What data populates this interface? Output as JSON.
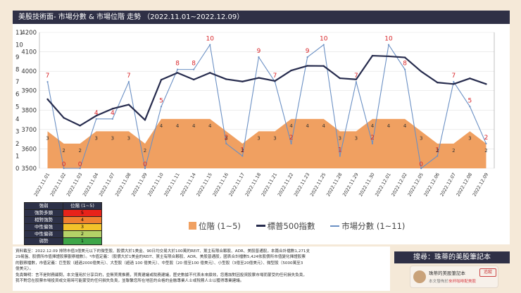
{
  "header": {
    "title": "美股技術面- 市場分數 & 市場位階 走勢 （2022.11.01~2022.12.09）"
  },
  "colors": {
    "position_area": "#f0a061",
    "sp500_line": "#262b4d",
    "score_line": "#6b90c4",
    "value_label": "#d8262a",
    "grid": "#e2e2e2",
    "header_bg": "#2f3046"
  },
  "chart_data": {
    "type": "combo",
    "title": "美股技術面- 市場分數 & 市場位階 走勢 （2022.11.01~2022.12.09）",
    "categories": [
      "2022.11.01",
      "2022.11.02",
      "2022.11.03",
      "2022.11.04",
      "2022.11.07",
      "2022.11.08",
      "2022.11.09",
      "2022.11.10",
      "2022.11.11",
      "2022.11.14",
      "2022.11.15",
      "2022.11.16",
      "2022.11.17",
      "2022.11.18",
      "2022.11.21",
      "2022.11.22",
      "2022.11.23",
      "2022.11.25",
      "2022.11.28",
      "2022.11.29",
      "2022.11.30",
      "2022.12.01",
      "2022.12.02",
      "2022.12.05",
      "2022.12.06",
      "2022.12.07",
      "2022.12.08",
      "2022.12.09"
    ],
    "y_left": {
      "min": 3500,
      "max": 4200,
      "step": 100,
      "ticks": [
        "3500",
        "3600",
        "3700",
        "3800",
        "3900",
        "4000",
        "4100",
        "4200"
      ]
    },
    "y_right": {
      "min": 0,
      "max": 11,
      "step": 1,
      "ticks": [
        "0",
        "1",
        "2",
        "3",
        "4",
        "5",
        "6",
        "7",
        "8",
        "9",
        "10",
        "11"
      ]
    },
    "series": [
      {
        "name": "位階 (1~5)",
        "type": "area",
        "axis": "right",
        "values": [
          3,
          2,
          2,
          3,
          3,
          3,
          2,
          4,
          4,
          4,
          4,
          3,
          2,
          3,
          3,
          4,
          4,
          4,
          3,
          3,
          4,
          4,
          4,
          3,
          2,
          2,
          3,
          2
        ]
      },
      {
        "name": "標普500指數",
        "type": "line",
        "axis": "left",
        "values": [
          3856,
          3760,
          3720,
          3771,
          3807,
          3828,
          3749,
          3956,
          3992,
          3957,
          3992,
          3959,
          3947,
          3966,
          3950,
          4004,
          4028,
          4027,
          3964,
          3958,
          4080,
          4077,
          4071,
          3999,
          3942,
          3934,
          3963,
          3934
        ]
      },
      {
        "name": "市場分數 (1~11)",
        "type": "line",
        "axis": "right",
        "values": [
          7,
          0,
          0,
          4,
          4,
          7,
          0,
          5,
          8,
          8,
          10,
          2,
          1,
          9,
          7,
          2,
          9,
          10,
          1,
          7,
          2,
          10,
          8,
          0,
          1,
          7,
          5,
          2
        ]
      }
    ],
    "legend_position": "bottom-center"
  },
  "legend": {
    "area_label": "位階 (1~5)",
    "sp500_label": "標普500指數",
    "score_label": "市場分數 (1~11)"
  },
  "strength_table": {
    "headers": [
      "強弱",
      "位階 (1~5)"
    ],
    "rows": [
      {
        "label": "強勢多頭",
        "value": "5",
        "color": "#e8231a"
      },
      {
        "label": "相對強勢",
        "value": "4",
        "color": "#f08030"
      },
      {
        "label": "中性偏強",
        "value": "3",
        "color": "#f3c22a"
      },
      {
        "label": "中性偏弱",
        "value": "2",
        "color": "#b5d167"
      },
      {
        "label": "弱勢",
        "value": "1",
        "color": "#3ea548"
      }
    ]
  },
  "notes": {
    "source": "資料截至：2022.12.09 排除市值3億美元以下的微型股、股價大於1美金、90日均交易大於100萬的REIT、黨主有限合夥股、ADR、美股普通股，本篇合計檔數1,271支",
    "source2": "29易盤、股價所市值擇證股票觀察檔數）。*市值定義：（股價大於1美金的REIT、黨主有限合夥股、ADR、美股普通股，國表合計檔數5,424依股價所市值變化擇證股票",
    "source3": "的觀察檔數，市值定義：巨型股（超過2000億美元）、大型股（超過 100 億美元）、中型股（20 億至100 億美元）、小型股（3億至20億美元）、微型股（5000萬至3",
    "source4": "億美元）。",
    "disclaimer": "免責聲明：言不是財務顧問，本文僅用於分享目的，並無買賣推薦，買賣建議或稅務建議，歷史數據不代表未來績效，您應該對因投資股票市場而蒙受的任何損失負責，",
    "disclaimer2": "我不對您在股票市場投資或交易時可能蒙受的任何損失負責，並聯繫您所在地區的合格的金融專業人士或稅務人士以獲得專業建議。"
  },
  "search": {
    "label": "搜尋：珠蒂的美股筆記本"
  },
  "channel": {
    "name": "珠蒂的美股筆記本",
    "subscribe": "追蹤",
    "sub_prefix": "本文發佈於",
    "sub_link": "來杯咖啡配美股"
  }
}
